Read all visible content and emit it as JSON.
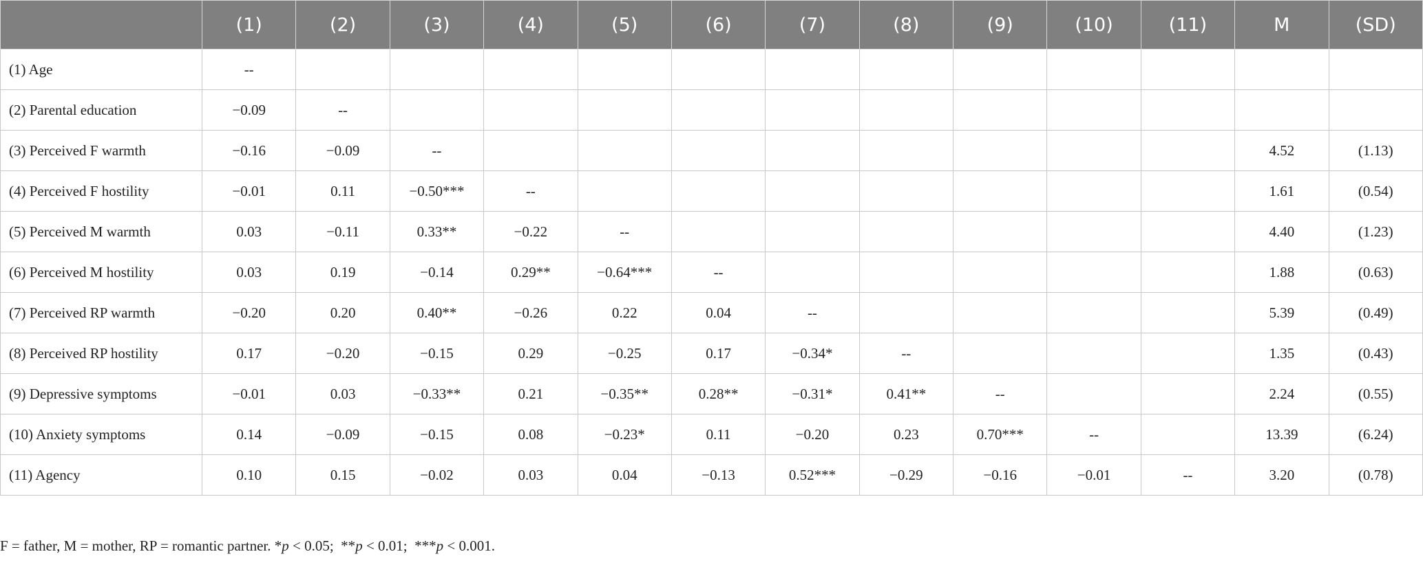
{
  "table": {
    "columns": [
      "(1)",
      "(2)",
      "(3)",
      "(4)",
      "(5)",
      "(6)",
      "(7)",
      "(8)",
      "(9)",
      "(10)",
      "(11)",
      "M",
      "(SD)"
    ],
    "rows": [
      {
        "label": "(1) Age",
        "values": [
          "--"
        ]
      },
      {
        "label": "(2) Parental education",
        "values": [
          "−0.09",
          "--"
        ]
      },
      {
        "label": "(3) Perceived F warmth",
        "values": [
          "−0.16",
          "−0.09",
          "--"
        ],
        "m": "4.52",
        "sd": "(1.13)"
      },
      {
        "label": "(4) Perceived F hostility",
        "values": [
          "−0.01",
          "0.11",
          "−0.50***",
          "--"
        ],
        "m": "1.61",
        "sd": "(0.54)"
      },
      {
        "label": "(5) Perceived M warmth",
        "values": [
          "0.03",
          "−0.11",
          "0.33**",
          "−0.22",
          "--"
        ],
        "m": "4.40",
        "sd": "(1.23)"
      },
      {
        "label": "(6) Perceived M hostility",
        "values": [
          "0.03",
          "0.19",
          "−0.14",
          "0.29**",
          "−0.64***",
          "--"
        ],
        "m": "1.88",
        "sd": "(0.63)"
      },
      {
        "label": "(7) Perceived RP warmth",
        "values": [
          "−0.20",
          "0.20",
          "0.40**",
          "−0.26",
          "0.22",
          "0.04",
          "--"
        ],
        "m": "5.39",
        "sd": "(0.49)"
      },
      {
        "label": "(8) Perceived RP hostility",
        "values": [
          "0.17",
          "−0.20",
          "−0.15",
          "0.29",
          "−0.25",
          "0.17",
          "−0.34*",
          "--"
        ],
        "m": "1.35",
        "sd": "(0.43)"
      },
      {
        "label": "(9) Depressive symptoms",
        "values": [
          "−0.01",
          "0.03",
          "−0.33**",
          "0.21",
          "−0.35**",
          "0.28**",
          "−0.31*",
          "0.41**",
          "--"
        ],
        "m": "2.24",
        "sd": "(0.55)"
      },
      {
        "label": "(10) Anxiety symptoms",
        "values": [
          "0.14",
          "−0.09",
          "−0.15",
          "0.08",
          "−0.23*",
          "0.11",
          "−0.20",
          "0.23",
          "0.70***",
          "--"
        ],
        "m": "13.39",
        "sd": "(6.24)"
      },
      {
        "label": "(11) Agency",
        "values": [
          "0.10",
          "0.15",
          "−0.02",
          "0.03",
          "0.04",
          "−0.13",
          "0.52***",
          "−0.29",
          "−0.16",
          "−0.01",
          "--"
        ],
        "m": "3.20",
        "sd": "(0.78)"
      }
    ]
  },
  "footnote": [
    "F = father, M = mother, RP = romantic partner. *",
    "p",
    " < 0.05;  **",
    "p",
    " < 0.01;  ***",
    "p",
    " < 0.001."
  ]
}
